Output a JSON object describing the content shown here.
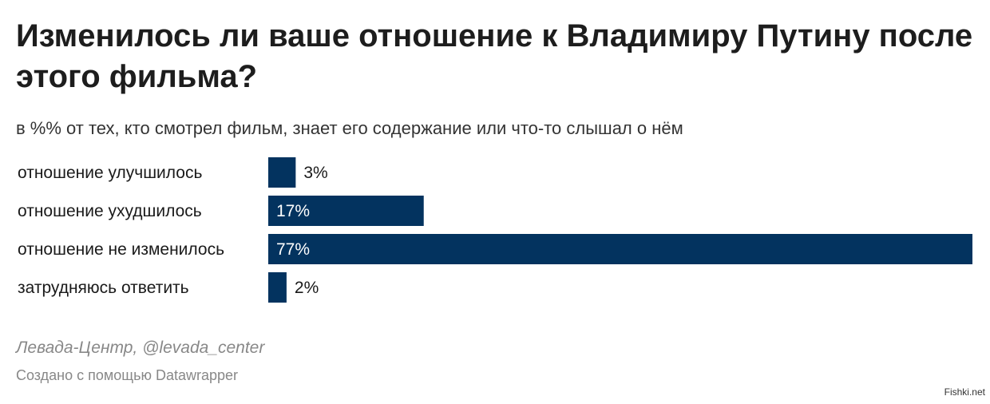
{
  "title": "Изменилось ли ваше отношение к Владимиру Путину после этого фильма?",
  "subtitle": "в %% от тех, кто смотрел фильм, знает его содержание или что-то слышал о нём",
  "source": "Левада-Центр, @levada_center",
  "credit": "Создано с помощью Datawrapper",
  "watermark": "Fishki.net",
  "colors": {
    "bar": "#03335f",
    "label_inside": "#ffffff",
    "label_outside": "#1a1a1a"
  },
  "chart_data": {
    "type": "bar",
    "orientation": "horizontal",
    "categories": [
      "отношение улучшилось",
      "отношение ухудшилось",
      "отношение не изменилось",
      "затрудняюсь ответить"
    ],
    "values": [
      3,
      17,
      77,
      2
    ],
    "value_labels": [
      "3%",
      "17%",
      "77%",
      "2%"
    ],
    "unit": "%",
    "xlim": [
      0,
      77
    ],
    "grid": false,
    "legend": "none"
  }
}
